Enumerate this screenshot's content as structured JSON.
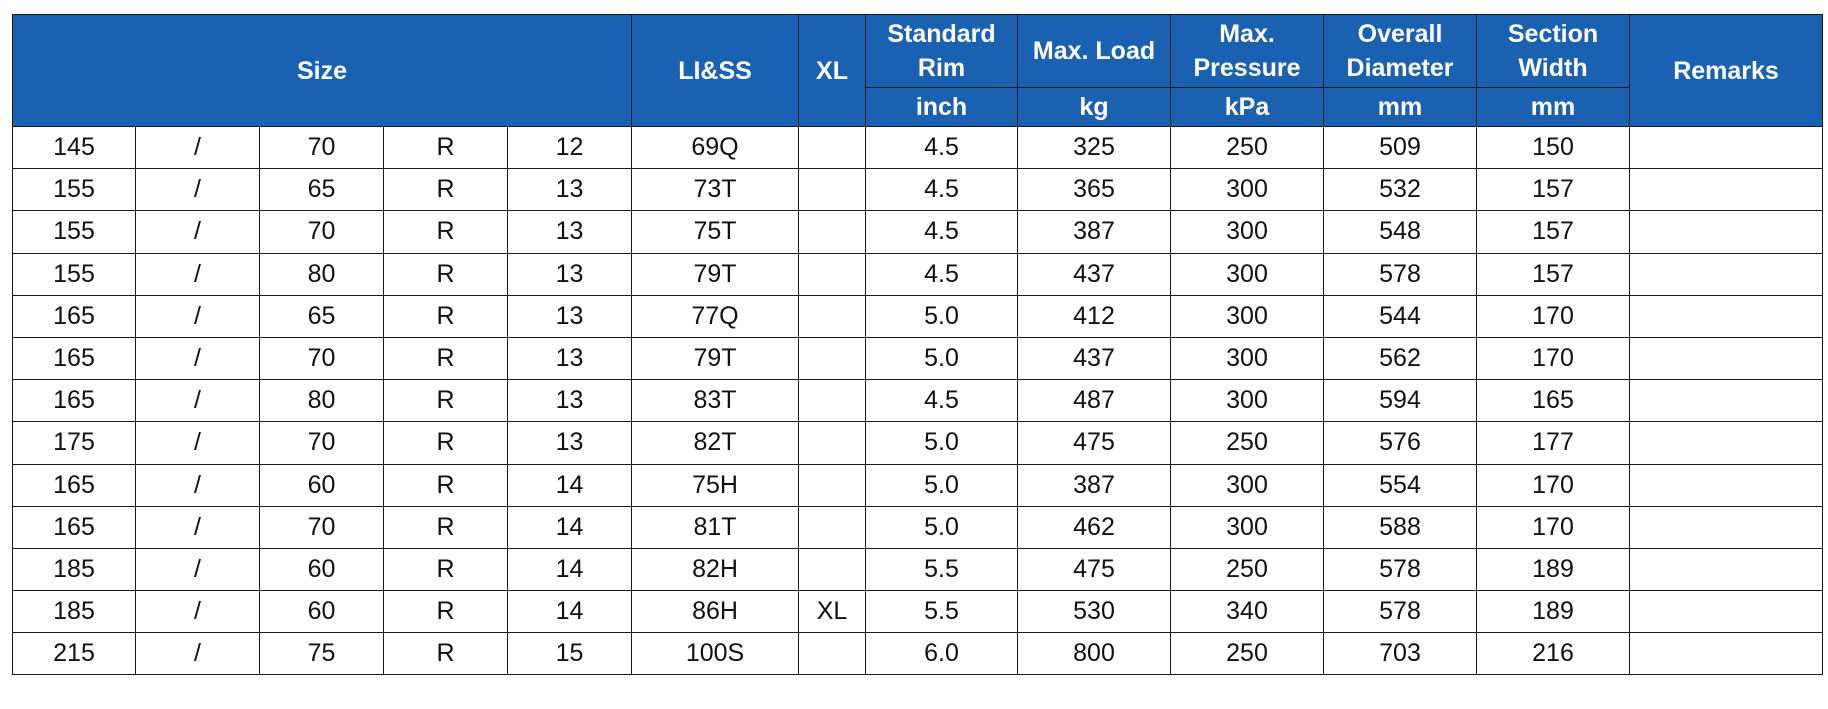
{
  "headers": {
    "size": "Size",
    "li_ss": "LI&SS",
    "xl": "XL",
    "standard_rim": "Standard Rim",
    "max_load": "Max. Load",
    "max_pressure": "Max. Pressure",
    "overall_diameter": "Overall Diameter",
    "section_width": "Section Width",
    "remarks": "Remarks"
  },
  "units": {
    "standard_rim": "inch",
    "max_load": "kg",
    "max_pressure": "kPa",
    "overall_diameter": "mm",
    "section_width": "mm"
  },
  "rows": [
    {
      "width": "145",
      "sep": "/",
      "aspect": "70",
      "construction": "R",
      "rim": "12",
      "li_ss": "69Q",
      "xl": "",
      "std_rim": "4.5",
      "max_load": "325",
      "max_pressure": "250",
      "overall_diameter": "509",
      "section_width": "150",
      "remarks": ""
    },
    {
      "width": "155",
      "sep": "/",
      "aspect": "65",
      "construction": "R",
      "rim": "13",
      "li_ss": "73T",
      "xl": "",
      "std_rim": "4.5",
      "max_load": "365",
      "max_pressure": "300",
      "overall_diameter": "532",
      "section_width": "157",
      "remarks": ""
    },
    {
      "width": "155",
      "sep": "/",
      "aspect": "70",
      "construction": "R",
      "rim": "13",
      "li_ss": "75T",
      "xl": "",
      "std_rim": "4.5",
      "max_load": "387",
      "max_pressure": "300",
      "overall_diameter": "548",
      "section_width": "157",
      "remarks": ""
    },
    {
      "width": "155",
      "sep": "/",
      "aspect": "80",
      "construction": "R",
      "rim": "13",
      "li_ss": "79T",
      "xl": "",
      "std_rim": "4.5",
      "max_load": "437",
      "max_pressure": "300",
      "overall_diameter": "578",
      "section_width": "157",
      "remarks": ""
    },
    {
      "width": "165",
      "sep": "/",
      "aspect": "65",
      "construction": "R",
      "rim": "13",
      "li_ss": "77Q",
      "xl": "",
      "std_rim": "5.0",
      "max_load": "412",
      "max_pressure": "300",
      "overall_diameter": "544",
      "section_width": "170",
      "remarks": ""
    },
    {
      "width": "165",
      "sep": "/",
      "aspect": "70",
      "construction": "R",
      "rim": "13",
      "li_ss": "79T",
      "xl": "",
      "std_rim": "5.0",
      "max_load": "437",
      "max_pressure": "300",
      "overall_diameter": "562",
      "section_width": "170",
      "remarks": ""
    },
    {
      "width": "165",
      "sep": "/",
      "aspect": "80",
      "construction": "R",
      "rim": "13",
      "li_ss": "83T",
      "xl": "",
      "std_rim": "4.5",
      "max_load": "487",
      "max_pressure": "300",
      "overall_diameter": "594",
      "section_width": "165",
      "remarks": ""
    },
    {
      "width": "175",
      "sep": "/",
      "aspect": "70",
      "construction": "R",
      "rim": "13",
      "li_ss": "82T",
      "xl": "",
      "std_rim": "5.0",
      "max_load": "475",
      "max_pressure": "250",
      "overall_diameter": "576",
      "section_width": "177",
      "remarks": ""
    },
    {
      "width": "165",
      "sep": "/",
      "aspect": "60",
      "construction": "R",
      "rim": "14",
      "li_ss": "75H",
      "xl": "",
      "std_rim": "5.0",
      "max_load": "387",
      "max_pressure": "300",
      "overall_diameter": "554",
      "section_width": "170",
      "remarks": ""
    },
    {
      "width": "165",
      "sep": "/",
      "aspect": "70",
      "construction": "R",
      "rim": "14",
      "li_ss": "81T",
      "xl": "",
      "std_rim": "5.0",
      "max_load": "462",
      "max_pressure": "300",
      "overall_diameter": "588",
      "section_width": "170",
      "remarks": ""
    },
    {
      "width": "185",
      "sep": "/",
      "aspect": "60",
      "construction": "R",
      "rim": "14",
      "li_ss": "82H",
      "xl": "",
      "std_rim": "5.5",
      "max_load": "475",
      "max_pressure": "250",
      "overall_diameter": "578",
      "section_width": "189",
      "remarks": ""
    },
    {
      "width": "185",
      "sep": "/",
      "aspect": "60",
      "construction": "R",
      "rim": "14",
      "li_ss": "86H",
      "xl": "XL",
      "std_rim": "5.5",
      "max_load": "530",
      "max_pressure": "340",
      "overall_diameter": "578",
      "section_width": "189",
      "remarks": ""
    },
    {
      "width": "215",
      "sep": "/",
      "aspect": "75",
      "construction": "R",
      "rim": "15",
      "li_ss": "100S",
      "xl": "",
      "std_rim": "6.0",
      "max_load": "800",
      "max_pressure": "250",
      "overall_diameter": "703",
      "section_width": "216",
      "remarks": ""
    }
  ]
}
